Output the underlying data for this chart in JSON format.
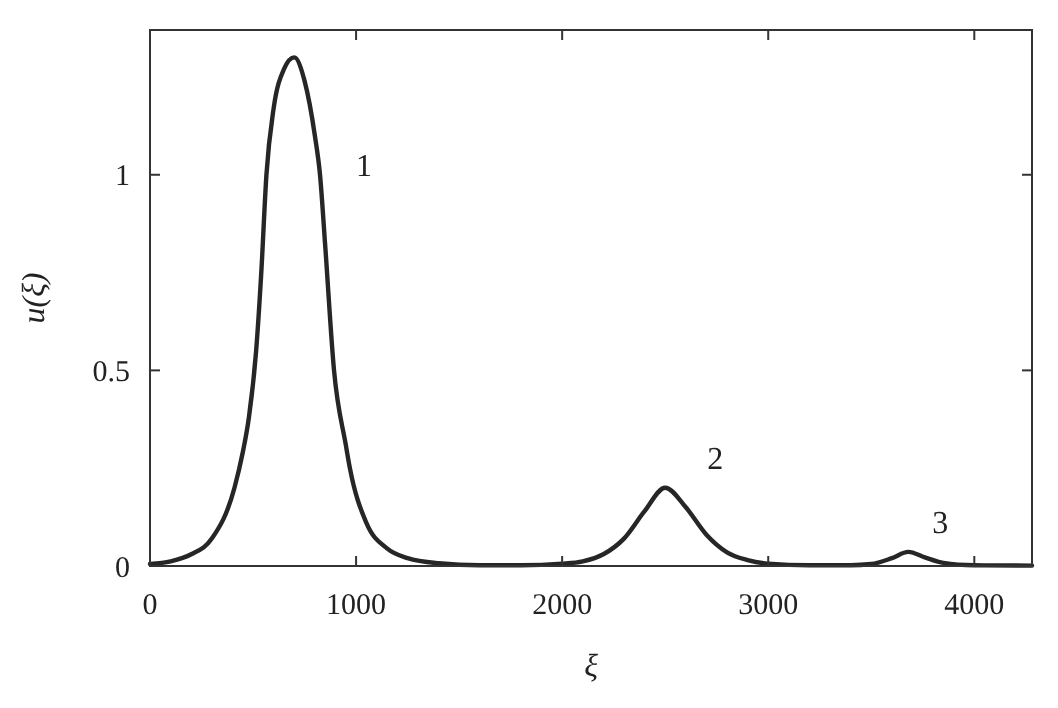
{
  "chart_data": {
    "type": "line",
    "xlabel": "ξ",
    "ylabel": "u(ξ)",
    "xlim": [
      0,
      4280
    ],
    "ylim": [
      0,
      1.37
    ],
    "xticks": [
      0,
      1000,
      2000,
      3000,
      4000
    ],
    "yticks": [
      0,
      0.5,
      1
    ],
    "grid": false,
    "marker": "none",
    "line_style": "solid",
    "x": [
      0,
      100,
      200,
      300,
      410,
      450,
      480,
      515,
      540,
      565,
      600,
      650,
      700,
      750,
      800,
      825,
      850,
      893,
      950,
      970,
      1050,
      1150,
      1250,
      1400,
      1600,
      1800,
      2000,
      2100,
      2200,
      2300,
      2400,
      2500,
      2600,
      2700,
      2800,
      2900,
      3000,
      3200,
      3400,
      3500,
      3600,
      3680,
      3760,
      3850,
      4000,
      4280
    ],
    "series": [
      {
        "color": "#262626",
        "values": [
          0.005,
          0.012,
          0.03,
          0.07,
          0.2,
          0.29,
          0.38,
          0.55,
          0.75,
          1.0,
          1.17,
          1.27,
          1.3,
          1.24,
          1.1,
          1.0,
          0.82,
          0.5,
          0.31,
          0.25,
          0.11,
          0.045,
          0.02,
          0.007,
          0.002,
          0.002,
          0.006,
          0.012,
          0.03,
          0.07,
          0.14,
          0.2,
          0.15,
          0.08,
          0.035,
          0.015,
          0.006,
          0.002,
          0.002,
          0.005,
          0.02,
          0.036,
          0.022,
          0.008,
          0.002,
          0.001
        ]
      }
    ],
    "annotations": [
      {
        "text": "1",
        "x": 825,
        "y": 1.0
      },
      {
        "text": "2",
        "x": 2500,
        "y": 0.2
      },
      {
        "text": "3",
        "x": 3680,
        "y": 0.036
      }
    ]
  }
}
